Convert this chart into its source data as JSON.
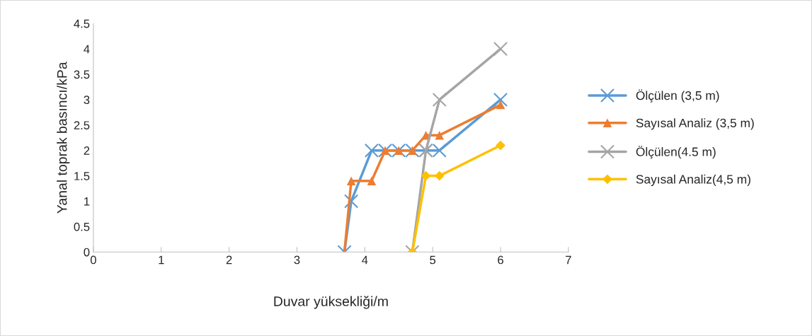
{
  "chart_data": {
    "type": "line",
    "xlabel": "Duvar yüksekliği/m",
    "ylabel": "Yanal toprak basıncı/kPa",
    "xlim": [
      0,
      7
    ],
    "xticks": [
      0,
      1,
      2,
      3,
      4,
      5,
      6,
      7
    ],
    "ylim": [
      0,
      4.5
    ],
    "yticks": [
      0,
      0.5,
      1,
      1.5,
      2,
      2.5,
      3,
      3.5,
      4,
      4.5
    ],
    "grid": false,
    "legend": "right",
    "line_style": "solid",
    "series": [
      {
        "name": "Ölçülen (3,5 m)",
        "color": "#5b9bd5",
        "marker": "cross",
        "x": [
          3.7,
          3.8,
          4.1,
          4.3,
          4.5,
          4.7,
          4.9,
          5.1,
          6
        ],
        "values": [
          0,
          1,
          2,
          2,
          2,
          2,
          2,
          2,
          3
        ]
      },
      {
        "name": "Sayısal Analiz (3,5 m)",
        "color": "#ed7d31",
        "marker": "triangle",
        "x": [
          3.7,
          3.8,
          4.1,
          4.3,
          4.5,
          4.7,
          4.9,
          5.1,
          6
        ],
        "values": [
          0,
          1.4,
          1.4,
          2,
          2,
          2,
          2.3,
          2.3,
          2.9
        ]
      },
      {
        "name": "Ölçülen(4.5 m)",
        "color": "#a5a5a5",
        "marker": "cross",
        "x": [
          4.7,
          4.9,
          5.1,
          6
        ],
        "values": [
          0,
          2,
          3,
          4
        ]
      },
      {
        "name": "Sayısal Analiz(4,5 m)",
        "color": "#ffc000",
        "marker": "diamond",
        "x": [
          4.7,
          4.9,
          5.1,
          6
        ],
        "values": [
          0,
          1.5,
          1.5,
          2.1
        ]
      }
    ]
  }
}
